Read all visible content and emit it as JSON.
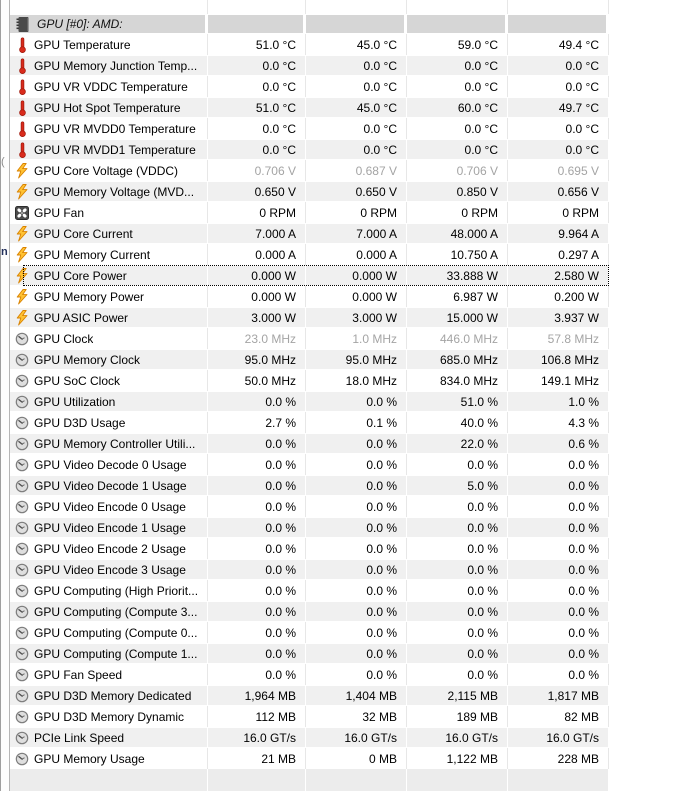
{
  "sensor_table": {
    "section_header": {
      "icon": "chip",
      "label": "GPU [#0]: AMD:"
    },
    "rows": [
      {
        "icon": "thermometer",
        "label": "GPU Temperature",
        "values": [
          "51.0 °C",
          "45.0 °C",
          "59.0 °C",
          "49.4 °C"
        ]
      },
      {
        "icon": "thermometer",
        "label": "GPU Memory Junction Temp...",
        "values": [
          "0.0 °C",
          "0.0 °C",
          "0.0 °C",
          "0.0 °C"
        ]
      },
      {
        "icon": "thermometer",
        "label": "GPU VR VDDC Temperature",
        "values": [
          "0.0 °C",
          "0.0 °C",
          "0.0 °C",
          "0.0 °C"
        ]
      },
      {
        "icon": "thermometer",
        "label": "GPU Hot Spot Temperature",
        "values": [
          "51.0 °C",
          "45.0 °C",
          "60.0 °C",
          "49.7 °C"
        ]
      },
      {
        "icon": "thermometer",
        "label": "GPU VR MVDD0 Temperature",
        "values": [
          "0.0 °C",
          "0.0 °C",
          "0.0 °C",
          "0.0 °C"
        ]
      },
      {
        "icon": "thermometer",
        "label": "GPU VR MVDD1 Temperature",
        "values": [
          "0.0 °C",
          "0.0 °C",
          "0.0 °C",
          "0.0 °C"
        ]
      },
      {
        "icon": "bolt",
        "label": "GPU Core Voltage (VDDC)",
        "dim": true,
        "values": [
          "0.706 V",
          "0.687 V",
          "0.706 V",
          "0.695 V"
        ]
      },
      {
        "icon": "bolt",
        "label": "GPU Memory Voltage (MVD...",
        "values": [
          "0.650 V",
          "0.650 V",
          "0.850 V",
          "0.656 V"
        ]
      },
      {
        "icon": "fan",
        "label": "GPU Fan",
        "values": [
          "0 RPM",
          "0 RPM",
          "0 RPM",
          "0 RPM"
        ]
      },
      {
        "icon": "bolt",
        "label": "GPU Core Current",
        "values": [
          "7.000 A",
          "7.000 A",
          "48.000 A",
          "9.964 A"
        ]
      },
      {
        "icon": "bolt",
        "label": "GPU Memory Current",
        "values": [
          "0.000 A",
          "0.000 A",
          "10.750 A",
          "0.297 A"
        ]
      },
      {
        "icon": "bolt",
        "label": "GPU Core Power",
        "focused": true,
        "values": [
          "0.000 W",
          "0.000 W",
          "33.888 W",
          "2.580 W"
        ]
      },
      {
        "icon": "bolt",
        "label": "GPU Memory Power",
        "values": [
          "0.000 W",
          "0.000 W",
          "6.987 W",
          "0.200 W"
        ]
      },
      {
        "icon": "bolt",
        "label": "GPU ASIC Power",
        "values": [
          "3.000 W",
          "3.000 W",
          "15.000 W",
          "3.937 W"
        ]
      },
      {
        "icon": "clock",
        "label": "GPU Clock",
        "dim": true,
        "values": [
          "23.0 MHz",
          "1.0 MHz",
          "446.0 MHz",
          "57.8 MHz"
        ]
      },
      {
        "icon": "clock",
        "label": "GPU Memory Clock",
        "values": [
          "95.0 MHz",
          "95.0 MHz",
          "685.0 MHz",
          "106.8 MHz"
        ]
      },
      {
        "icon": "clock",
        "label": "GPU SoC Clock",
        "values": [
          "50.0 MHz",
          "18.0 MHz",
          "834.0 MHz",
          "149.1 MHz"
        ]
      },
      {
        "icon": "clock",
        "label": "GPU Utilization",
        "values": [
          "0.0 %",
          "0.0 %",
          "51.0 %",
          "1.0 %"
        ]
      },
      {
        "icon": "clock",
        "label": "GPU D3D Usage",
        "values": [
          "2.7 %",
          "0.1 %",
          "40.0 %",
          "4.3 %"
        ]
      },
      {
        "icon": "clock",
        "label": "GPU Memory Controller Utili...",
        "values": [
          "0.0 %",
          "0.0 %",
          "22.0 %",
          "0.6 %"
        ]
      },
      {
        "icon": "clock",
        "label": "GPU Video Decode 0 Usage",
        "values": [
          "0.0 %",
          "0.0 %",
          "0.0 %",
          "0.0 %"
        ]
      },
      {
        "icon": "clock",
        "label": "GPU Video Decode 1 Usage",
        "values": [
          "0.0 %",
          "0.0 %",
          "5.0 %",
          "0.0 %"
        ]
      },
      {
        "icon": "clock",
        "label": "GPU Video Encode 0 Usage",
        "values": [
          "0.0 %",
          "0.0 %",
          "0.0 %",
          "0.0 %"
        ]
      },
      {
        "icon": "clock",
        "label": "GPU Video Encode 1 Usage",
        "values": [
          "0.0 %",
          "0.0 %",
          "0.0 %",
          "0.0 %"
        ]
      },
      {
        "icon": "clock",
        "label": "GPU Video Encode 2 Usage",
        "values": [
          "0.0 %",
          "0.0 %",
          "0.0 %",
          "0.0 %"
        ]
      },
      {
        "icon": "clock",
        "label": "GPU Video Encode 3 Usage",
        "values": [
          "0.0 %",
          "0.0 %",
          "0.0 %",
          "0.0 %"
        ]
      },
      {
        "icon": "clock",
        "label": "GPU Computing (High Priorit...",
        "values": [
          "0.0 %",
          "0.0 %",
          "0.0 %",
          "0.0 %"
        ]
      },
      {
        "icon": "clock",
        "label": "GPU Computing (Compute 3...",
        "values": [
          "0.0 %",
          "0.0 %",
          "0.0 %",
          "0.0 %"
        ]
      },
      {
        "icon": "clock",
        "label": "GPU Computing (Compute 0...",
        "values": [
          "0.0 %",
          "0.0 %",
          "0.0 %",
          "0.0 %"
        ]
      },
      {
        "icon": "clock",
        "label": "GPU Computing (Compute 1...",
        "values": [
          "0.0 %",
          "0.0 %",
          "0.0 %",
          "0.0 %"
        ]
      },
      {
        "icon": "clock",
        "label": "GPU Fan Speed",
        "values": [
          "0.0 %",
          "0.0 %",
          "0.0 %",
          "0.0 %"
        ]
      },
      {
        "icon": "clock",
        "label": "GPU D3D Memory Dedicated",
        "values": [
          "1,964 MB",
          "1,404 MB",
          "2,115 MB",
          "1,817 MB"
        ]
      },
      {
        "icon": "clock",
        "label": "GPU D3D Memory Dynamic",
        "values": [
          "112 MB",
          "32 MB",
          "189 MB",
          "82 MB"
        ]
      },
      {
        "icon": "clock",
        "label": "PCIe Link Speed",
        "values": [
          "16.0 GT/s",
          "16.0 GT/s",
          "16.0 GT/s",
          "16.0 GT/s"
        ]
      },
      {
        "icon": "clock",
        "label": "GPU Memory Usage",
        "values": [
          "21 MB",
          "0 MB",
          "1,122 MB",
          "228 MB"
        ]
      }
    ]
  },
  "artifacts": {
    "edge_fragments": [
      "(",
      "n"
    ]
  },
  "colors": {
    "row_stripe": "#f0f0f0",
    "section_header_bg": "#d6d6d6",
    "column_separator": "#e7e7e7",
    "dim_value_text": "#a4a4a4",
    "text": "#000000",
    "thermometer_red": "#d92b1c",
    "bolt_orange": "#ffc233",
    "bottom_strip": "#ececec"
  }
}
